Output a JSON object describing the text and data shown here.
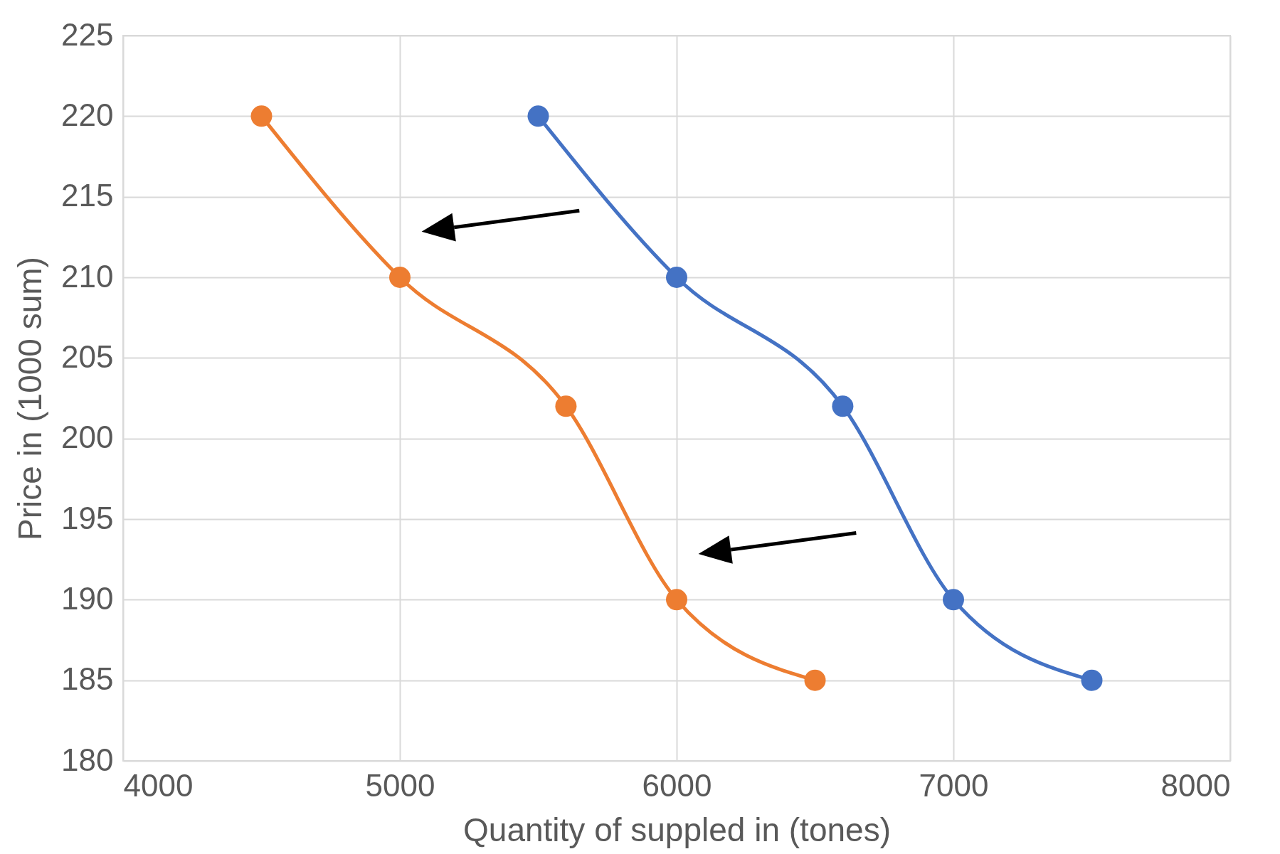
{
  "chart_data": {
    "type": "line",
    "xlabel": "Quantity of suppled in (tones)",
    "ylabel": "Price in (1000 sum)",
    "series": [
      {
        "color": "#4472c4",
        "x": [
          5500,
          6000,
          6600,
          7000,
          7500
        ],
        "values": [
          220,
          210,
          202,
          190,
          185
        ]
      },
      {
        "color": "#ed7d31",
        "x": [
          4500,
          5000,
          5600,
          6000,
          6500
        ],
        "values": [
          220,
          210,
          202,
          190,
          185
        ]
      }
    ],
    "xlim": [
      4000,
      8000
    ],
    "xticks": [
      4000,
      5000,
      6000,
      7000,
      8000
    ],
    "ylim": [
      180,
      225
    ],
    "yticks": [
      180,
      185,
      190,
      195,
      200,
      205,
      210,
      215,
      220,
      225
    ],
    "grid": true,
    "marker": "circle",
    "line_style": "solid",
    "legend": false
  }
}
